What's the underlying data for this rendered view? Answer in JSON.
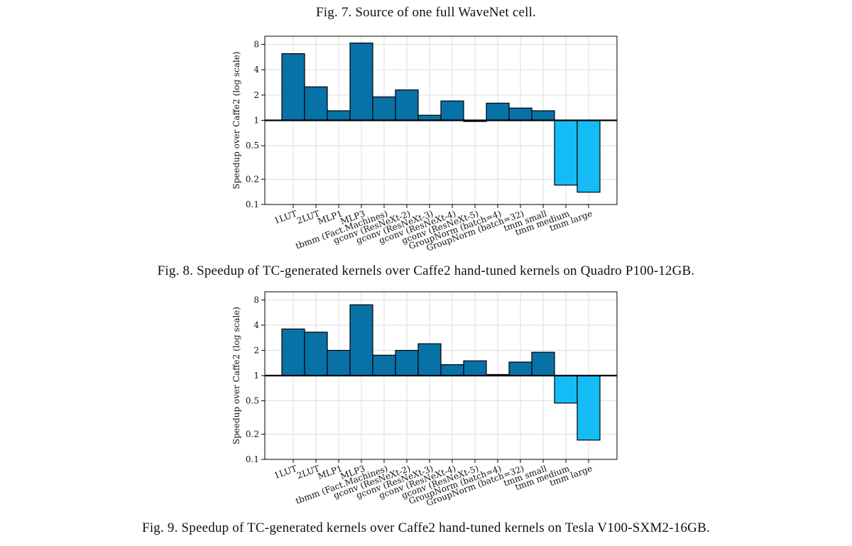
{
  "captions": {
    "fig7": "Fig. 7.  Source of one full WaveNet cell.",
    "fig8": "Fig. 8.  Speedup of TC-generated kernels over Caffe2 hand-tuned kernels on Quadro P100-12GB.",
    "fig9": "Fig. 9.  Speedup of TC-generated kernels over Caffe2 hand-tuned kernels on Tesla V100-SXM2-16GB."
  },
  "colors": {
    "speedup": "#0872a6",
    "slowdown": "#15bcf5",
    "baseline": "#000000",
    "grid": "#dddddd"
  },
  "chart_data": [
    {
      "type": "bar",
      "title": "Speedup of TC-generated kernels over Caffe2 hand-tuned kernels on Quadro P100-12GB",
      "xlabel": "",
      "ylabel": "Speedup over Caffe2 (log scale)",
      "yscale": "log",
      "ylim": [
        0.1,
        10
      ],
      "yticks": [
        0.1,
        0.2,
        0.5,
        1,
        2,
        4,
        8
      ],
      "ytick_labels": [
        "0.1",
        "0.2",
        "0.5",
        "1",
        "2",
        "4",
        "8"
      ],
      "baseline": 1,
      "grid": true,
      "categories": [
        "1LUT",
        "2LUT",
        "MLP1",
        "MLP3",
        "tbmm (Fact.Machines)",
        "gconv (ResNeXt-2)",
        "gconv (ResNeXt-3)",
        "gconv (ResNeXt-4)",
        "gconv (ResNeXt-5)",
        "GroupNorm (batch=4)",
        "GroupNorm (batch=32)",
        "tmm small",
        "tmm medium",
        "tmm large"
      ],
      "values": [
        6.2,
        2.5,
        1.3,
        8.3,
        1.9,
        2.3,
        1.15,
        1.7,
        0.97,
        1.6,
        1.4,
        1.3,
        0.17,
        0.14
      ]
    },
    {
      "type": "bar",
      "title": "Speedup of TC-generated kernels over Caffe2 hand-tuned kernels on Tesla V100-SXM2-16GB",
      "xlabel": "",
      "ylabel": "Speedup over Caffe2 (log scale)",
      "yscale": "log",
      "ylim": [
        0.1,
        10
      ],
      "yticks": [
        0.1,
        0.2,
        0.5,
        1,
        2,
        4,
        8
      ],
      "ytick_labels": [
        "0.1",
        "0.2",
        "0.5",
        "1",
        "2",
        "4",
        "8"
      ],
      "baseline": 1,
      "grid": true,
      "categories": [
        "1LUT",
        "2LUT",
        "MLP1",
        "MLP3",
        "tbmm (Fact.Machines)",
        "gconv (ResNeXt-2)",
        "gconv (ResNeXt-3)",
        "gconv (ResNeXt-4)",
        "gconv (ResNeXt-5)",
        "GroupNorm (batch=4)",
        "GroupNorm (batch=32)",
        "tmm small",
        "tmm medium",
        "tmm large"
      ],
      "values": [
        3.6,
        3.3,
        2.0,
        7.0,
        1.75,
        2.0,
        2.4,
        1.35,
        1.5,
        1.03,
        1.45,
        1.9,
        0.47,
        0.17
      ]
    }
  ]
}
